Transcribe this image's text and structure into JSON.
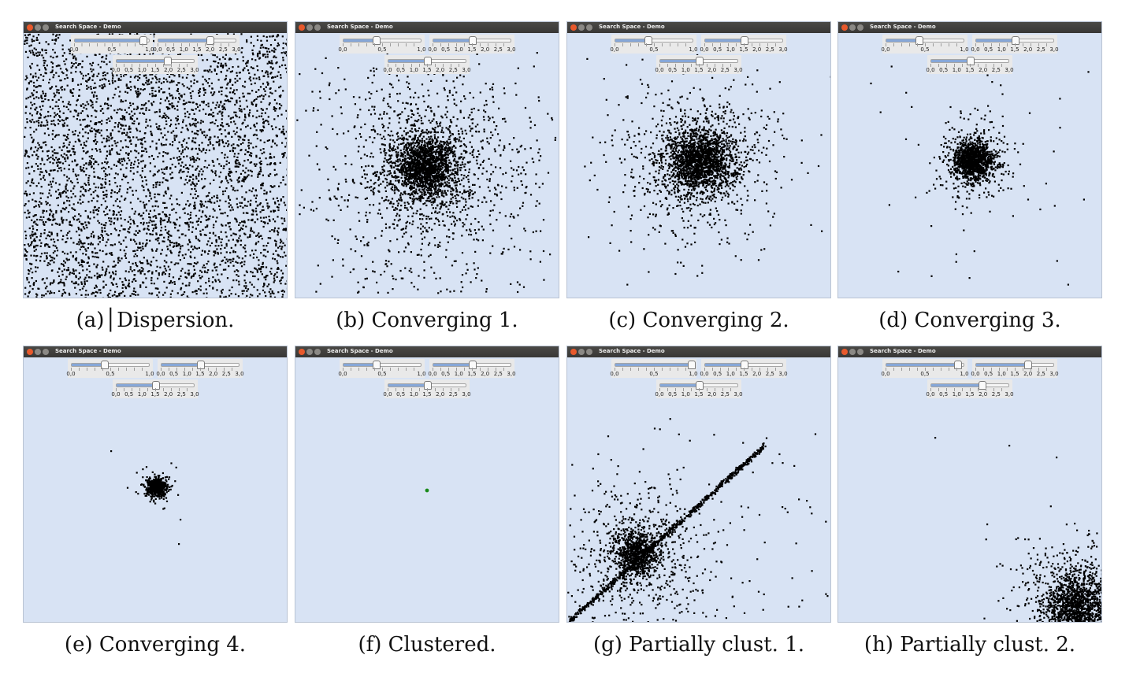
{
  "window_title": "Search Space - Demo",
  "slider_labels": {
    "unit": [
      "0,0",
      "0,5",
      "1,0"
    ],
    "wide": [
      "0,0",
      "0,5",
      "1,0",
      "1,5",
      "2,0",
      "2,5",
      "3,0"
    ]
  },
  "panels": [
    {
      "caption": "(a)│Dispersion.",
      "state": "dispersion",
      "slider_values": [
        0.92,
        2.0,
        1.95
      ]
    },
    {
      "caption": "(b) Converging 1.",
      "state": "converging-1",
      "slider_values": [
        0.42,
        1.5,
        1.5
      ]
    },
    {
      "caption": "(c) Converging 2.",
      "state": "converging-2",
      "slider_values": [
        0.42,
        1.5,
        1.5
      ]
    },
    {
      "caption": "(d) Converging 3.",
      "state": "converging-3",
      "slider_values": [
        0.42,
        1.5,
        1.5
      ]
    },
    {
      "caption": "(e) Converging 4.",
      "state": "converging-4",
      "slider_values": [
        0.42,
        1.5,
        1.5
      ]
    },
    {
      "caption": "(f) Clustered.",
      "state": "clustered",
      "slider_values": [
        0.42,
        1.5,
        1.5
      ]
    },
    {
      "caption": "(g) Partially clust. 1.",
      "state": "partially-clustered-1",
      "slider_values": [
        0.98,
        1.5,
        1.5
      ]
    },
    {
      "caption": "(h) Partially clust. 2.",
      "state": "partially-clustered-2",
      "slider_values": [
        0.92,
        2.0,
        1.95
      ]
    }
  ],
  "colors": {
    "canvas": "#d8e3f4",
    "particle": "#000000",
    "cluster_point": "#1a8a1a",
    "slider_fill": "#86a7d8",
    "close_button": "#e8592c"
  }
}
